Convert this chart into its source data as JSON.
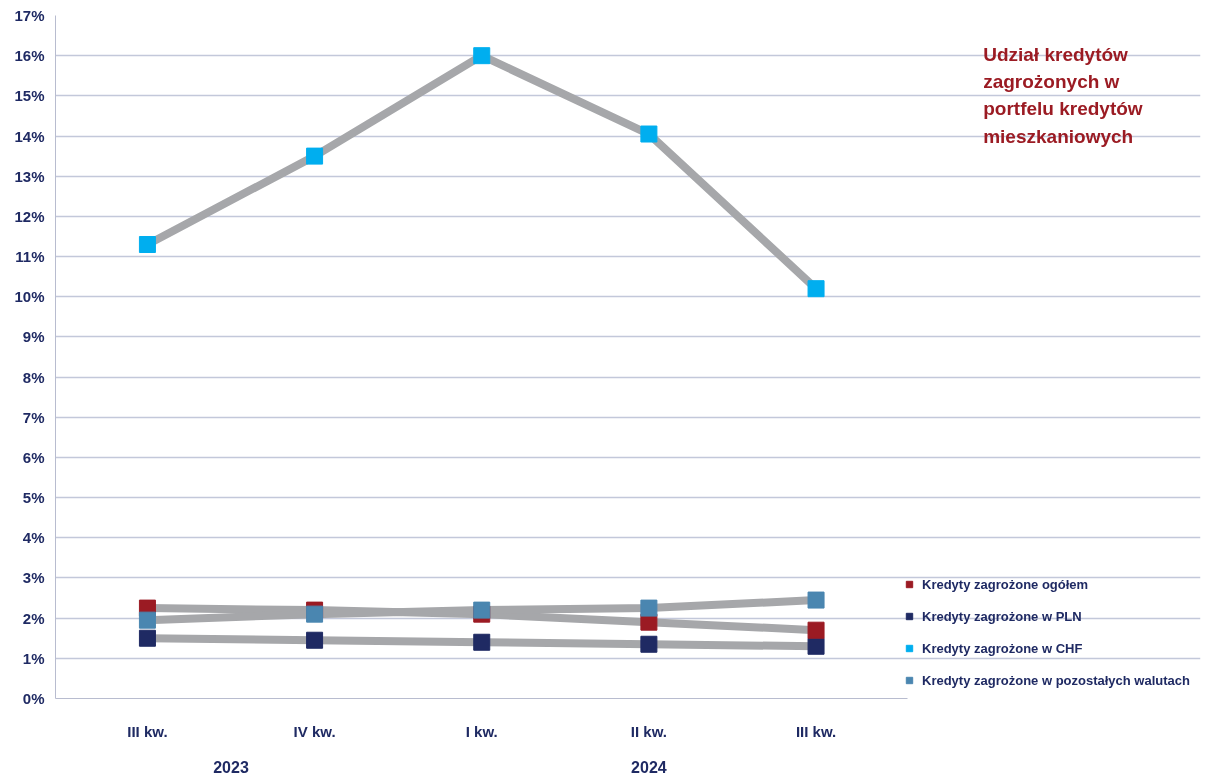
{
  "chart_data": {
    "type": "line",
    "title": "Udział kredytów zagrożonych w portfelu kredytów mieszkaniowych",
    "categories": [
      "III kw.",
      "IV kw.",
      "I kw.",
      "II kw.",
      "III kw."
    ],
    "series": [
      {
        "name": "Kredyty zagrożone ogółem",
        "color": "#9b1b23",
        "values": [
          2.25,
          2.2,
          2.1,
          1.9,
          1.7
        ]
      },
      {
        "name": "Kredyty zagrożone w PLN",
        "color": "#1f2a63",
        "values": [
          1.5,
          1.45,
          1.4,
          1.35,
          1.3
        ]
      },
      {
        "name": "Kredyty zagrożone w CHF",
        "color": "#00aeef",
        "values": [
          11.3,
          13.5,
          16.0,
          14.05,
          10.2
        ]
      },
      {
        "name": "Kredyty zagrożone w pozostałych walutach",
        "color": "#4a86b0",
        "values": [
          1.95,
          2.1,
          2.2,
          2.25,
          2.45
        ]
      }
    ],
    "ylim": [
      0,
      17
    ],
    "yticks": [
      {
        "value": 0,
        "label": "0%"
      },
      {
        "value": 1,
        "label": "1%"
      },
      {
        "value": 2,
        "label": "2%"
      },
      {
        "value": 3,
        "label": "3%"
      },
      {
        "value": 4,
        "label": "4%"
      },
      {
        "value": 5,
        "label": "5%"
      },
      {
        "value": 6,
        "label": "6%"
      },
      {
        "value": 7,
        "label": "7%"
      },
      {
        "value": 8,
        "label": "8%"
      },
      {
        "value": 9,
        "label": "9%"
      },
      {
        "value": 10,
        "label": "10%"
      },
      {
        "value": 11,
        "label": "11%"
      },
      {
        "value": 12,
        "label": "12%"
      },
      {
        "value": 13,
        "label": "13%"
      },
      {
        "value": 14,
        "label": "14%"
      },
      {
        "value": 15,
        "label": "15%"
      },
      {
        "value": 16,
        "label": "16%"
      },
      {
        "value": 17,
        "label": "17%"
      }
    ],
    "annotations": [
      "2023",
      "2024"
    ],
    "grid": "y",
    "legend": "bottom right",
    "marker": "square"
  }
}
